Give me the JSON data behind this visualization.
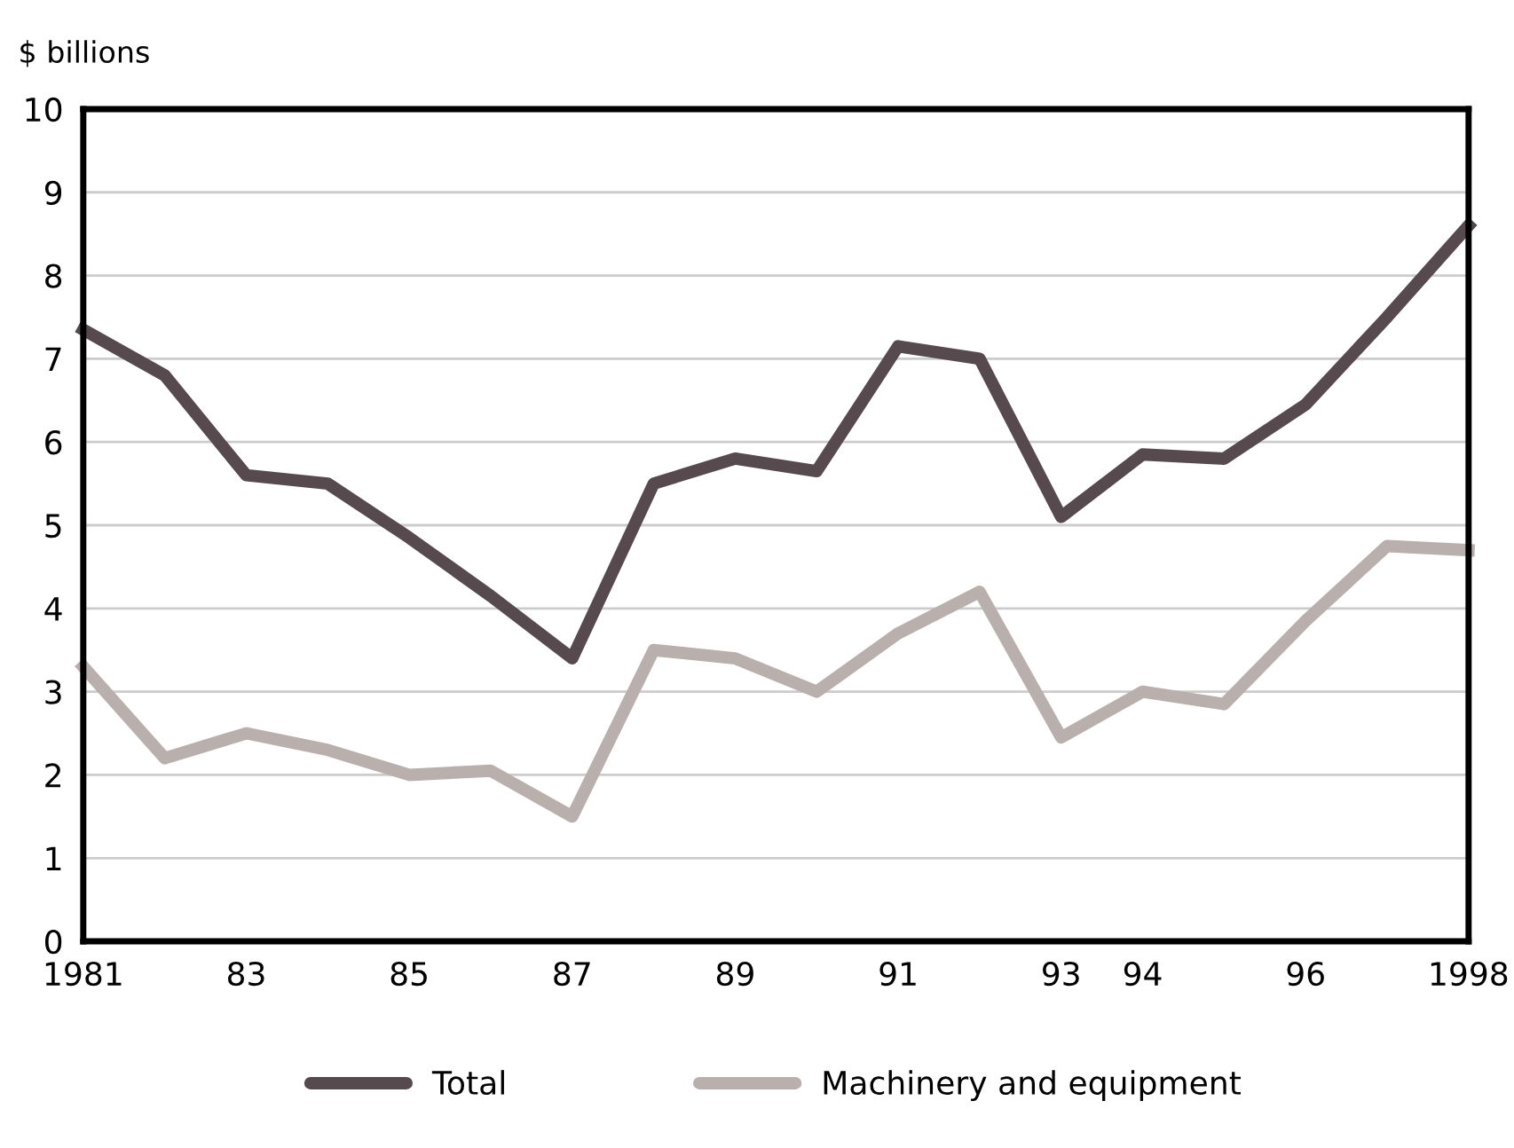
{
  "chart_data": {
    "type": "line",
    "ylabel": "$ billions",
    "x": [
      1981,
      1982,
      1983,
      1984,
      1985,
      1986,
      1987,
      1988,
      1989,
      1990,
      1991,
      1992,
      1993,
      1994,
      1995,
      1996,
      1997,
      1998
    ],
    "series": [
      {
        "name": "Total",
        "color": "#574a4f",
        "values": [
          7.35,
          6.8,
          5.6,
          5.5,
          4.85,
          4.15,
          3.4,
          5.5,
          5.8,
          5.65,
          7.15,
          7.0,
          5.1,
          5.85,
          5.8,
          6.45,
          7.5,
          8.6
        ]
      },
      {
        "name": "Machinery and equipment",
        "color": "#b9afac",
        "values": [
          3.3,
          2.2,
          2.5,
          2.3,
          2.0,
          2.05,
          1.5,
          3.5,
          3.4,
          3.0,
          3.7,
          4.2,
          2.45,
          3.0,
          2.85,
          3.85,
          4.75,
          4.7
        ]
      }
    ],
    "xlim": [
      1981,
      1998
    ],
    "xticks": [
      1981,
      {
        "value": 1983,
        "label": "83"
      },
      {
        "value": 1985,
        "label": "85"
      },
      {
        "value": 1987,
        "label": "87"
      },
      {
        "value": 1989,
        "label": "89"
      },
      {
        "value": 1991,
        "label": "91"
      },
      {
        "value": 1993,
        "label": "93"
      },
      {
        "value": 1994,
        "label": "94"
      },
      {
        "value": 1996,
        "label": "96"
      },
      1998
    ],
    "ylim": [
      0,
      10
    ],
    "yticks": [
      0,
      1,
      2,
      3,
      4,
      5,
      6,
      7,
      8,
      9,
      10
    ],
    "grid": "y",
    "legend": "bottom",
    "marker": "none",
    "line_style": "solid"
  }
}
